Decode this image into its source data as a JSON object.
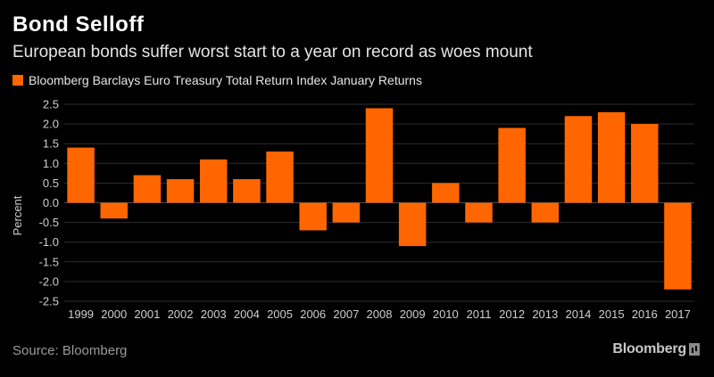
{
  "header": {
    "title": "Bond Selloff",
    "subtitle": "European bonds suffer worst start to a year on record as woes mount"
  },
  "legend": {
    "label": "Bloomberg Barclays Euro Treasury Total Return Index January Returns",
    "color": "#ff6600"
  },
  "footer": {
    "source": "Source: Bloomberg",
    "brand": "Bloomberg"
  },
  "colors": {
    "background": "#000000",
    "bar": "#ff6600",
    "gridline": "#2e2e2e",
    "zero_line": "#4a4a4a",
    "tick_text": "#cfcfcf"
  },
  "chart_data": {
    "type": "bar",
    "categories": [
      "1999",
      "2000",
      "2001",
      "2002",
      "2003",
      "2004",
      "2005",
      "2006",
      "2007",
      "2008",
      "2009",
      "2010",
      "2011",
      "2012",
      "2013",
      "2014",
      "2015",
      "2016",
      "2017"
    ],
    "series": [
      {
        "name": "Bloomberg Barclays Euro Treasury Total Return Index January Returns",
        "values": [
          1.4,
          -0.4,
          0.7,
          0.6,
          1.1,
          0.6,
          1.3,
          -0.7,
          -0.5,
          2.4,
          -1.1,
          0.5,
          -0.5,
          1.9,
          -0.5,
          2.2,
          2.3,
          2.0,
          -2.2
        ]
      }
    ],
    "title": "Bond Selloff",
    "subtitle": "European bonds suffer worst start to a year on record as woes mount",
    "xlabel": "",
    "ylabel": "Percent",
    "ylim": [
      -2.5,
      2.5
    ],
    "yticks": [
      "2.5",
      "2.0",
      "1.5",
      "1.0",
      "0.5",
      "0.0",
      "-0.5",
      "-1.0",
      "-1.5",
      "-2.0",
      "-2.5"
    ],
    "grid": true,
    "legend_position": "top-left"
  }
}
